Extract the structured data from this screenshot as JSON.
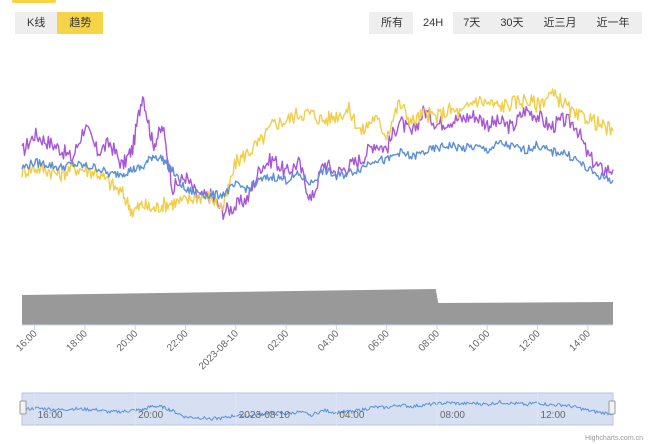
{
  "tabs": [
    {
      "label": "K线",
      "active": false
    },
    {
      "label": "趋势",
      "active": true
    }
  ],
  "ranges": [
    {
      "label": "所有",
      "active": false
    },
    {
      "label": "24H",
      "active": true
    },
    {
      "label": "7天",
      "active": false
    },
    {
      "label": "30天",
      "active": false
    },
    {
      "label": "近三月",
      "active": false
    },
    {
      "label": "近一年",
      "active": false
    }
  ],
  "credit": "Highcharts.com.cn",
  "colors": {
    "accent": "#f5d547",
    "purple": "#a855d8",
    "yellow": "#f2cd48",
    "blue": "#5b8fd8",
    "volume": "#999999",
    "navigator_fill": "#cad6ee"
  },
  "chart_data": {
    "type": "line",
    "x_range": [
      "15:30",
      "15:00 next day"
    ],
    "x_ticks": [
      "16:00",
      "18:00",
      "20:00",
      "22:00",
      "2023-08-10",
      "02:00",
      "04:00",
      "06:00",
      "08:00",
      "10:00",
      "12:00",
      "14:00"
    ],
    "x_hours": [
      0.5,
      2.5,
      4.5,
      6.5,
      8.5,
      10.5,
      12.5,
      14.5,
      16.5,
      18.5,
      20.5,
      22.5
    ],
    "navigator_ticks": [
      "16:00",
      "20:00",
      "2023-08-10",
      "04:00",
      "08:00",
      "12:00"
    ],
    "navigator_hours": [
      0.5,
      4.5,
      8.5,
      12.5,
      16.5,
      20.5
    ],
    "y_axis": "none",
    "grid": false,
    "legend": "none",
    "series": [
      {
        "color": "#a855d8",
        "x": [
          0,
          0.5,
          1,
          1.5,
          2,
          2.5,
          3,
          3.5,
          4,
          4.4,
          4.8,
          5.2,
          5.6,
          6,
          6.5,
          7,
          7.5,
          8,
          8.5,
          9,
          9.5,
          10,
          10.5,
          11,
          11.5,
          12,
          12.5,
          13,
          13.5,
          14,
          14.5,
          15,
          15.5,
          16,
          16.5,
          17,
          17.5,
          18,
          18.5,
          19,
          19.5,
          20,
          20.5,
          21,
          21.5,
          22,
          22.5,
          23,
          23.5
        ],
        "values": [
          56,
          66,
          62,
          58,
          52,
          71,
          56,
          61,
          48,
          58,
          90,
          60,
          70,
          35,
          42,
          30,
          31,
          22,
          25,
          30,
          48,
          52,
          44,
          50,
          28,
          50,
          44,
          48,
          52,
          61,
          58,
          74,
          66,
          80,
          72,
          74,
          75,
          77,
          72,
          73,
          70,
          80,
          77,
          70,
          74,
          72,
          54,
          46,
          46
        ]
      },
      {
        "color": "#f2cd48",
        "x": [
          0,
          0.5,
          1,
          1.5,
          2,
          2.5,
          3,
          3.5,
          4,
          4.4,
          4.8,
          5.2,
          5.6,
          6,
          6.5,
          7,
          7.5,
          8,
          8.5,
          9,
          9.5,
          10,
          10.5,
          11,
          11.5,
          12,
          12.5,
          13,
          13.5,
          14,
          14.5,
          15,
          15.5,
          16,
          16.5,
          17,
          17.5,
          18,
          18.5,
          19,
          19.5,
          20,
          20.5,
          21,
          21.5,
          22,
          22.5,
          23,
          23.5
        ],
        "values": [
          45,
          47,
          46,
          43,
          47,
          46,
          44,
          38,
          32,
          22,
          26,
          23,
          26,
          27,
          28,
          31,
          30,
          24,
          50,
          56,
          62,
          72,
          74,
          78,
          78,
          74,
          77,
          80,
          67,
          76,
          66,
          84,
          73,
          78,
          76,
          80,
          78,
          86,
          84,
          82,
          84,
          86,
          83,
          89,
          85,
          76,
          76,
          71,
          68
        ]
      },
      {
        "color": "#5b8fd8",
        "x": [
          0,
          0.5,
          1,
          1.5,
          2,
          2.5,
          3,
          3.5,
          4,
          4.4,
          4.8,
          5.2,
          5.6,
          6,
          6.5,
          7,
          7.5,
          8,
          8.5,
          9,
          9.5,
          10,
          10.5,
          11,
          11.5,
          12,
          12.5,
          13,
          13.5,
          14,
          14.5,
          15,
          15.5,
          16,
          16.5,
          17,
          17.5,
          18,
          18.5,
          19,
          19.5,
          20,
          20.5,
          21,
          21.5,
          22,
          22.5,
          23,
          23.5
        ],
        "values": [
          47,
          50,
          49,
          47,
          49,
          48,
          47,
          43,
          44,
          46,
          47,
          54,
          52,
          45,
          34,
          33,
          31,
          32,
          37,
          35,
          40,
          42,
          40,
          43,
          38,
          46,
          42,
          44,
          47,
          52,
          51,
          56,
          53,
          56,
          58,
          60,
          58,
          59,
          57,
          61,
          59,
          57,
          60,
          56,
          56,
          52,
          46,
          42,
          40
        ]
      }
    ],
    "volume": {
      "color": "#999999",
      "x": [
        0,
        16.45,
        16.55,
        23.5
      ],
      "values": [
        30,
        36,
        22,
        23
      ]
    }
  }
}
